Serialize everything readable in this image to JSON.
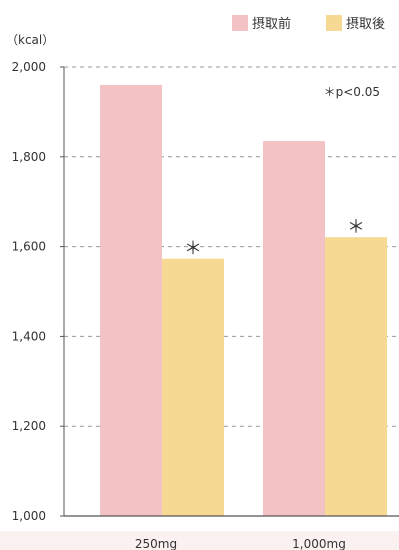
{
  "chart_data": {
    "type": "bar",
    "ylabel": "（kcal）",
    "ylim": [
      1000,
      2000
    ],
    "yticks": [
      1000,
      1200,
      1400,
      1600,
      1800,
      2000
    ],
    "ytick_labels": [
      "1,000",
      "1,200",
      "1,400",
      "1,600",
      "1,800",
      "2,000"
    ],
    "grid": true,
    "categories": [
      "250mg",
      "1,000mg"
    ],
    "series": [
      {
        "name": "摂取前",
        "color": "#f2c2c4",
        "values": [
          1960,
          1835
        ]
      },
      {
        "name": "摂取後",
        "color": "#f6da94",
        "values": [
          1573,
          1621
        ]
      }
    ],
    "significance_marks": [
      "＊",
      "＊"
    ],
    "annotation": "＊p<0.05",
    "legend_position": "top-right"
  }
}
